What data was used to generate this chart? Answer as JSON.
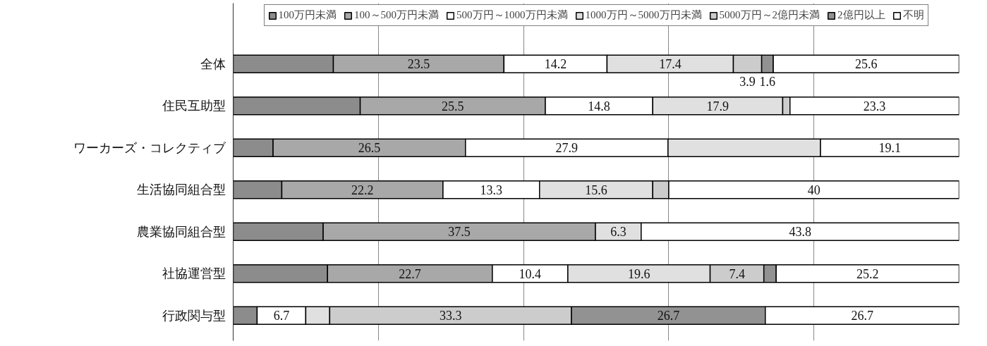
{
  "chart_data": {
    "type": "bar",
    "orientation": "horizontal",
    "stacked": true,
    "categories": [
      "全体",
      "住民互助型",
      "ワーカーズ・コレクティブ",
      "生活協同組合型",
      "農業協同組合型",
      "社協運営型",
      "行政関与型"
    ],
    "series": [
      {
        "name": "100万円未満",
        "color": "#8c8c8c",
        "values": [
          13.8,
          17.5,
          5.5,
          6.7,
          12.4,
          13.0,
          3.3
        ],
        "value_labels": [
          null,
          null,
          null,
          null,
          null,
          null,
          null
        ]
      },
      {
        "name": "100～500万円未満",
        "color": "#a8a8a8",
        "values": [
          23.5,
          25.5,
          26.5,
          22.2,
          37.5,
          22.7,
          0
        ],
        "value_labels": [
          "23.5",
          "25.5",
          "26.5",
          "22.2",
          "37.5",
          "22.7",
          null
        ]
      },
      {
        "name": "500万円～1000万円未満",
        "color": "#ffffff",
        "values": [
          14.2,
          14.8,
          27.9,
          13.3,
          0,
          10.4,
          6.7
        ],
        "value_labels": [
          "14.2",
          "14.8",
          "27.9",
          "13.3",
          null,
          "10.4",
          "6.7"
        ]
      },
      {
        "name": "1000万円～5000万円未満",
        "color": "#e0e0e0",
        "values": [
          17.4,
          17.9,
          21.0,
          15.6,
          6.3,
          19.6,
          3.3
        ],
        "value_labels": [
          "17.4",
          "17.9",
          null,
          "15.6",
          "6.3",
          "19.6",
          null
        ]
      },
      {
        "name": "5000万円～2億円未満",
        "color": "#cccccc",
        "values": [
          3.9,
          1.0,
          0,
          2.2,
          0,
          7.4,
          33.3
        ],
        "value_labels": [
          "3.9",
          null,
          null,
          null,
          null,
          "7.4",
          "33.3"
        ]
      },
      {
        "name": "2億円以上",
        "color": "#929292",
        "values": [
          1.6,
          0,
          0,
          0,
          0,
          1.7,
          26.7
        ],
        "value_labels": [
          "1.6",
          null,
          null,
          null,
          null,
          null,
          "26.7"
        ]
      },
      {
        "name": "不明",
        "color": "#ffffff",
        "values": [
          25.6,
          23.3,
          19.1,
          40,
          43.8,
          25.2,
          26.7
        ],
        "value_labels": [
          "25.6",
          "23.3",
          "19.1",
          "40",
          "43.8",
          "25.2",
          "26.7"
        ]
      }
    ],
    "xlim": [
      0,
      100
    ],
    "xticks": [
      {
        "value": 20,
        "label": null
      },
      {
        "value": 40,
        "label": null
      },
      {
        "value": 60,
        "label": null
      },
      {
        "value": 80,
        "label": null
      }
    ],
    "tick_labels": "y",
    "grid": "x",
    "legend": "top"
  }
}
